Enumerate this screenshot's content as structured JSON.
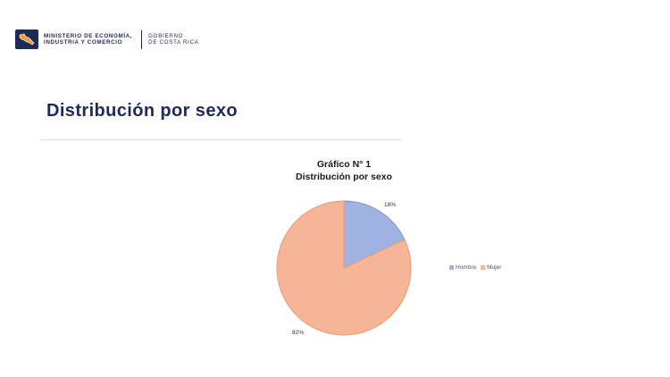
{
  "header": {
    "ministry_line1": "MINISTERIO DE ECONOMÍA,",
    "ministry_line2": "INDUSTRIA Y COMERCIO",
    "gov_line1": "GOBIERNO",
    "gov_line2": "DE COSTA RICA"
  },
  "page": {
    "title": "Distribución por sexo"
  },
  "chart_data": {
    "type": "pie",
    "title": "Gráfico N° 1",
    "subtitle": "Distribución por sexo",
    "categories": [
      "Hombre",
      "Mujer"
    ],
    "values": [
      18,
      82
    ],
    "labels": [
      "18%",
      "82%"
    ],
    "colors": [
      "#9fb2e2",
      "#f6b596"
    ],
    "edge_colors": [
      "#7f98d2",
      "#ec9a73"
    ],
    "legend_position": "right"
  }
}
